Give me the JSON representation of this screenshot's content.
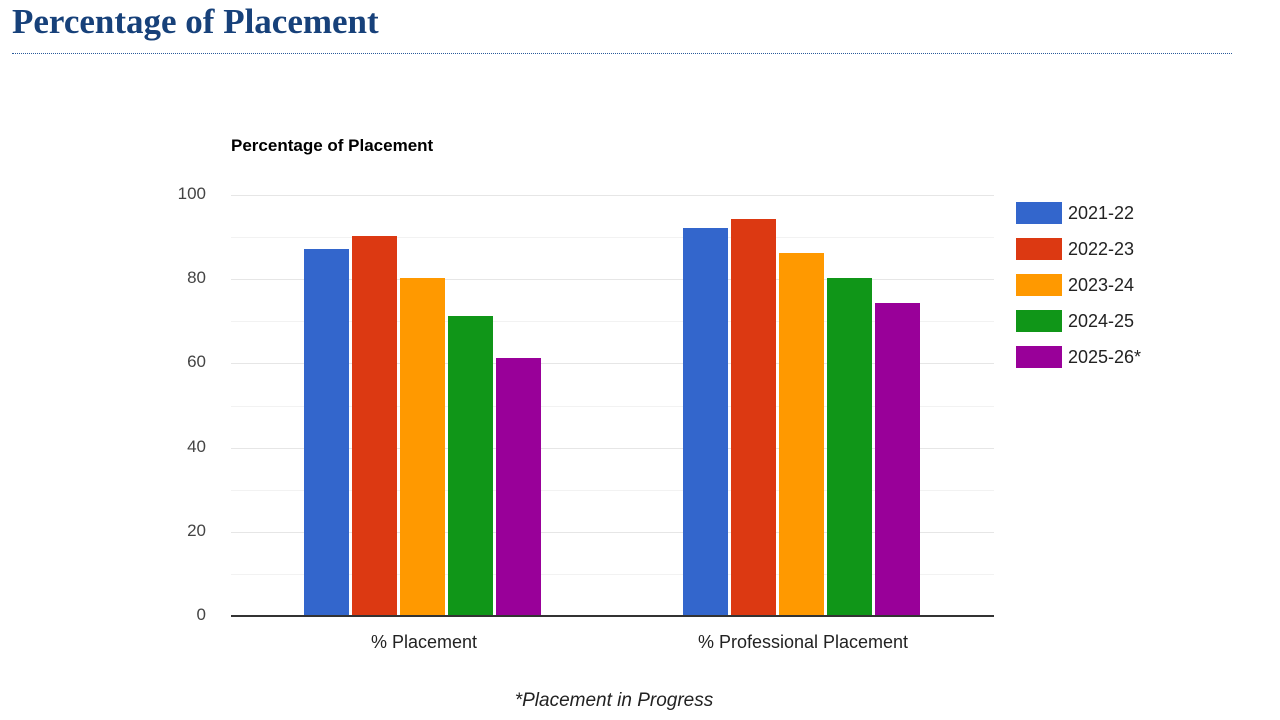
{
  "page": {
    "title": "Percentage of Placement",
    "note": "*Placement in Progress"
  },
  "chart_data": {
    "type": "bar",
    "title": "Percentage of Placement",
    "categories": [
      "% Placement",
      "% Professional Placement"
    ],
    "series": [
      {
        "name": "2021-22",
        "color": "#3366cc",
        "values": [
          87,
          92
        ]
      },
      {
        "name": "2022-23",
        "color": "#dc3912",
        "values": [
          90,
          94
        ]
      },
      {
        "name": "2023-24",
        "color": "#ff9900",
        "values": [
          80,
          86
        ]
      },
      {
        "name": "2024-25",
        "color": "#109618",
        "values": [
          71,
          80
        ]
      },
      {
        "name": "2025-26*",
        "color": "#990099",
        "values": [
          61,
          74
        ]
      }
    ],
    "xlabel": "",
    "ylabel": "",
    "ylim": [
      0,
      100
    ],
    "yticks": [
      "0",
      "20",
      "40",
      "60",
      "80",
      "100"
    ],
    "grid": true,
    "legend_position": "right"
  }
}
